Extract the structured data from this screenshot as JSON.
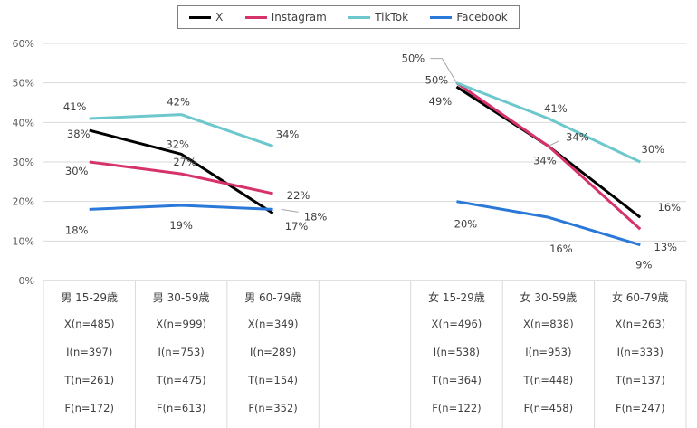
{
  "chart_data": {
    "type": "line",
    "title": "",
    "xlabel": "",
    "ylabel": "",
    "ylim": [
      0,
      60
    ],
    "yticks": [
      "0%",
      "10%",
      "20%",
      "30%",
      "40%",
      "50%",
      "60%"
    ],
    "grid": true,
    "legend_position": "top",
    "categories": [
      "男 15-29歳",
      "男 30-59歳",
      "男 60-79歳",
      "",
      "女 15-29歳",
      "女 30-59歳",
      "女 60-79歳"
    ],
    "series": [
      {
        "name": "X",
        "color": "#000000",
        "values": [
          38,
          32,
          17,
          null,
          49,
          34,
          16
        ],
        "labels": [
          "38%",
          "32%",
          "17%",
          "",
          "49%",
          "34%",
          "16%"
        ]
      },
      {
        "name": "Instagram",
        "color": "#d6336c",
        "values": [
          30,
          27,
          22,
          null,
          50,
          34,
          13
        ],
        "labels": [
          "30%",
          "27%",
          "22%",
          "",
          "50%",
          "34%",
          "13%"
        ]
      },
      {
        "name": "TikTok",
        "color": "#6cc8cc",
        "values": [
          41,
          42,
          34,
          null,
          50,
          41,
          30
        ],
        "labels": [
          "41%",
          "42%",
          "34%",
          "",
          "50%",
          "41%",
          "30%"
        ]
      },
      {
        "name": "Facebook",
        "color": "#2a78d8",
        "values": [
          18,
          19,
          18,
          null,
          20,
          16,
          9
        ],
        "labels": [
          "18%",
          "19%",
          "18%",
          "",
          "20%",
          "16%",
          "9%"
        ]
      }
    ],
    "sample_rows": [
      [
        "X(n=485)",
        "X(n=999)",
        "X(n=349)",
        "",
        "X(n=496)",
        "X(n=838)",
        "X(n=263)"
      ],
      [
        "I(n=397)",
        "I(n=753)",
        "I(n=289)",
        "",
        "I(n=538)",
        "I(n=953)",
        "I(n=333)"
      ],
      [
        "T(n=261)",
        "T(n=475)",
        "T(n=154)",
        "",
        "T(n=364)",
        "T(n=448)",
        "T(n=137)"
      ],
      [
        "F(n=172)",
        "F(n=613)",
        "F(n=352)",
        "",
        "F(n=122)",
        "F(n=458)",
        "F(n=247)"
      ]
    ]
  }
}
